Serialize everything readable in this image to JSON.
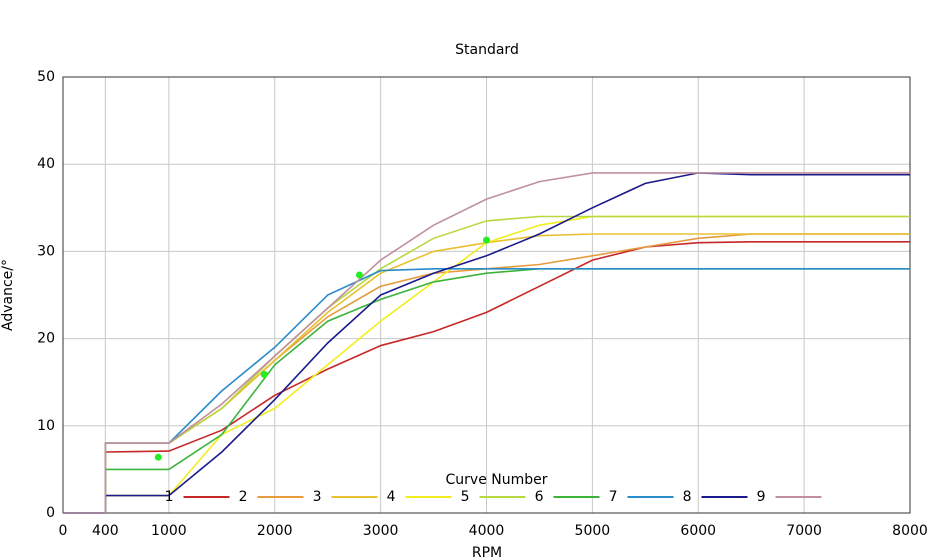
{
  "chart_data": {
    "type": "line",
    "title": "Standard",
    "x_label": "RPM",
    "y_label": "Advance/°",
    "legend_title": "Curve Number",
    "legend": "lower center",
    "grid": true,
    "xlim": [
      0,
      8000
    ],
    "ylim": [
      0,
      50
    ],
    "xticks": [
      0,
      400,
      1000,
      2000,
      3000,
      4000,
      5000,
      6000,
      7000,
      8000
    ],
    "yticks": [
      0,
      10,
      20,
      30,
      40,
      50
    ],
    "x": [
      0,
      400,
      400,
      1000,
      1500,
      2000,
      2500,
      3000,
      3500,
      4000,
      4500,
      5000,
      5500,
      6000,
      6500,
      7000,
      8000
    ],
    "series": [
      {
        "name": "1",
        "color": "#c62828",
        "values": [
          0,
          0,
          7,
          7.1,
          9.5,
          13.5,
          16.5,
          19.2,
          20.8,
          23,
          26,
          29,
          30.5,
          31,
          31.1,
          31.1,
          31.1
        ]
      },
      {
        "name": "2",
        "color": "#e69c3c",
        "values": [
          0,
          0,
          8,
          8,
          12,
          17.5,
          22.5,
          26,
          27.5,
          28,
          28.5,
          29.5,
          30.5,
          31.5,
          32,
          32,
          32
        ]
      },
      {
        "name": "3",
        "color": "#e8c030",
        "values": [
          0,
          0,
          8,
          8,
          12,
          17.5,
          23,
          27.5,
          30,
          31,
          31.8,
          32,
          32,
          32,
          32,
          32,
          32
        ]
      },
      {
        "name": "4",
        "color": "#f2ee1e",
        "values": [
          0,
          0,
          2,
          2,
          9,
          12,
          17,
          22,
          26.5,
          31,
          33,
          34,
          34,
          34,
          34,
          34,
          34
        ]
      },
      {
        "name": "5",
        "color": "#b8d840",
        "values": [
          0,
          0,
          8,
          8,
          12,
          18,
          23.5,
          28,
          31.5,
          33.5,
          34,
          34,
          34,
          34,
          34,
          34,
          34
        ]
      },
      {
        "name": "6",
        "color": "#3cb43c",
        "values": [
          0,
          0,
          5,
          5,
          9,
          17,
          22,
          24.5,
          26.5,
          27.5,
          28,
          28,
          28,
          28,
          28,
          28,
          28
        ]
      },
      {
        "name": "7",
        "color": "#2a8cc8",
        "values": [
          0,
          0,
          8,
          8,
          14,
          19,
          25,
          27.8,
          28,
          28,
          28,
          28,
          28,
          28,
          28,
          28,
          28
        ]
      },
      {
        "name": "8",
        "color": "#1a1a8c",
        "values": [
          0,
          0,
          2,
          2,
          7,
          13,
          19.5,
          25,
          27.5,
          29.5,
          32,
          35,
          37.8,
          39,
          38.8,
          38.8,
          38.8
        ]
      },
      {
        "name": "9",
        "color": "#c090a0",
        "values": [
          0,
          0,
          8,
          8,
          12.5,
          18,
          23.5,
          29,
          33,
          36,
          38,
          39,
          39,
          39,
          39,
          39,
          39
        ]
      }
    ],
    "points": {
      "color": "#22ee22",
      "x": [
        900,
        1900,
        2800,
        4000
      ],
      "values": [
        6.4,
        15.9,
        27.3,
        31.3
      ]
    }
  }
}
